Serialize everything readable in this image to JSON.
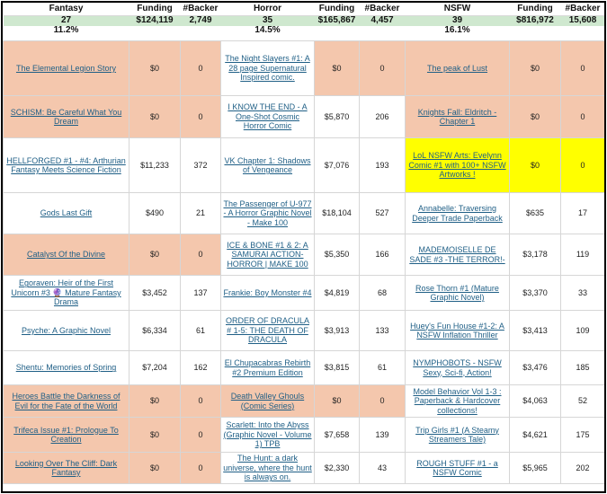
{
  "headers": {
    "fantasy": "Fantasy",
    "horror": "Horror",
    "nsfw": "NSFW",
    "funding": "Funding",
    "backer": "#Backer"
  },
  "totals": {
    "fantasy": {
      "count": "27",
      "funding": "$124,119",
      "backers": "2,749",
      "pct": "11.2%"
    },
    "horror": {
      "count": "35",
      "funding": "$165,867",
      "backers": "4,457",
      "pct": "14.5%"
    },
    "nsfw": {
      "count": "39",
      "funding": "$816,972",
      "backers": "15,608",
      "pct": "16.1%"
    }
  },
  "highlight_colors": {
    "zero_funded": "#f4c7ad",
    "featured": "#ffff00",
    "totals_row": "#cfe8cf"
  },
  "rows": [
    {
      "fantasy": {
        "title": "The Elemental Legion Story",
        "funding": "$0",
        "backers": "0"
      },
      "horror": {
        "title": "The Night Slayers #1: A 28 page Supernatural Inspired comic.",
        "funding": "$0",
        "backers": "0"
      },
      "nsfw": {
        "title": "The peak of Lust",
        "funding": "$0",
        "backers": "0"
      }
    },
    {
      "fantasy": {
        "title": "SCHISM: Be Careful What You Dream",
        "funding": "$0",
        "backers": "0"
      },
      "horror": {
        "title": "I KNOW THE END - A One-Shot Cosmic Horror Comic",
        "funding": "$5,870",
        "backers": "206"
      },
      "nsfw": {
        "title": "Knights Fall: Eldritch - Chapter 1",
        "funding": "$0",
        "backers": "0"
      }
    },
    {
      "fantasy": {
        "title": "HELLFORGED #1 - #4: Arthurian Fantasy Meets Science Fiction",
        "funding": "$11,233",
        "backers": "372"
      },
      "horror": {
        "title": "VK Chapter 1: Shadows of Vengeance",
        "funding": "$7,076",
        "backers": "193"
      },
      "nsfw": {
        "title": "LoL NSFW Arts: Evelynn Comic #1 with 100+ NSFW Artworks !",
        "funding": "$0",
        "backers": "0"
      }
    },
    {
      "fantasy": {
        "title": "Gods Last Gift",
        "funding": "$490",
        "backers": "21"
      },
      "horror": {
        "title": "The Passenger of U-977 - A Horror Graphic Novel - Make 100",
        "funding": "$18,104",
        "backers": "527"
      },
      "nsfw": {
        "title": "Annabelle: Traversing Deeper Trade Paperback",
        "funding": "$635",
        "backers": "17"
      }
    },
    {
      "fantasy": {
        "title": "Catalyst Of the Divine",
        "funding": "$0",
        "backers": "0"
      },
      "horror": {
        "title": "ICE & BONE #1 & 2: A SAMURAI ACTION-HORROR | MAKE 100",
        "funding": "$5,350",
        "backers": "166"
      },
      "nsfw": {
        "title": "MADEMOISELLE DE SADE #3 -THE TERROR!-",
        "funding": "$3,178",
        "backers": "119"
      }
    },
    {
      "fantasy": {
        "title": "Egoraven: Heir of the First Unicorn #3 🔮 Mature Fantasy Drama",
        "funding": "$3,452",
        "backers": "137"
      },
      "horror": {
        "title": "Frankie: Boy Monster #4",
        "funding": "$4,819",
        "backers": "68"
      },
      "nsfw": {
        "title": "Rose Thorn #1 (Mature Graphic Novel)",
        "funding": "$3,370",
        "backers": "33"
      }
    },
    {
      "fantasy": {
        "title": "Psyche: A Graphic Novel",
        "funding": "$6,334",
        "backers": "61"
      },
      "horror": {
        "title": "ORDER OF DRACULA # 1-5: THE DEATH OF DRACULA",
        "funding": "$3,913",
        "backers": "133"
      },
      "nsfw": {
        "title": "Huey's Fun House #1-2: A NSFW Inflation Thriller",
        "funding": "$3,413",
        "backers": "109"
      }
    },
    {
      "fantasy": {
        "title": "Shentu: Memories of Spring",
        "funding": "$7,204",
        "backers": "162"
      },
      "horror": {
        "title": "El Chupacabras Rebirth #2 Premium Edition",
        "funding": "$3,815",
        "backers": "61"
      },
      "nsfw": {
        "title": "NYMPHOBOTS - NSFW Sexy, Sci-fi, Action!",
        "funding": "$3,476",
        "backers": "185"
      }
    },
    {
      "fantasy": {
        "title": "Heroes Battle the Darkness of Evil for the Fate of the World",
        "funding": "$0",
        "backers": "0"
      },
      "horror": {
        "title": "Death Valley Ghouls (Comic Series)",
        "funding": "$0",
        "backers": "0"
      },
      "nsfw": {
        "title": "Model Behavior Vol 1-3 : Paperback & Hardcover collections!",
        "funding": "$4,063",
        "backers": "52"
      }
    },
    {
      "fantasy": {
        "title": "Trifeca Issue #1: Prologue To Creation",
        "funding": "$0",
        "backers": "0"
      },
      "horror": {
        "title": "Scarlett: Into the Abyss (Graphic Novel - Volume 1) TPB",
        "funding": "$7,658",
        "backers": "139"
      },
      "nsfw": {
        "title": "Trip Girls #1 (A Steamy Streamers Tale)",
        "funding": "$4,621",
        "backers": "175"
      }
    },
    {
      "fantasy": {
        "title": "Looking Over The Cliff: Dark Fantasy",
        "funding": "$0",
        "backers": "0"
      },
      "horror": {
        "title": "The Hunt: a dark universe, where the hunt is always on.",
        "funding": "$2,330",
        "backers": "43"
      },
      "nsfw": {
        "title": "ROUGH STUFF #1 - a NSFW Comic",
        "funding": "$5,965",
        "backers": "202"
      }
    }
  ]
}
